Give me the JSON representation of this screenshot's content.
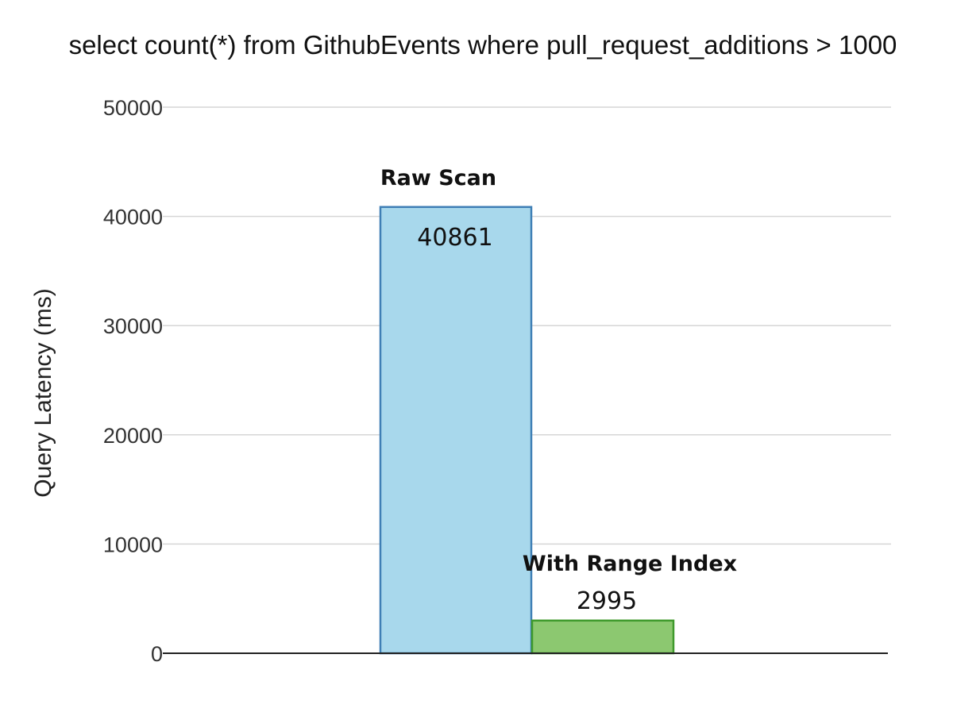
{
  "chart_data": {
    "type": "bar",
    "title": "select count(*) from GithubEvents where pull_request_additions > 1000",
    "xlabel": "",
    "ylabel": "Query Latency (ms)",
    "ylim": [
      0,
      50000
    ],
    "yticks": [
      0,
      10000,
      20000,
      30000,
      40000,
      50000
    ],
    "grid": true,
    "categories": [
      "Raw Scan",
      "With Range Index"
    ],
    "values": [
      40861,
      2995
    ],
    "value_labels": [
      "40861",
      "2995"
    ],
    "colors": {
      "Raw Scan": {
        "fill": "#a8d8ec",
        "stroke": "#3f7fb5"
      },
      "With Range Index": {
        "fill": "#8cc870",
        "stroke": "#3f9a2c"
      }
    }
  }
}
